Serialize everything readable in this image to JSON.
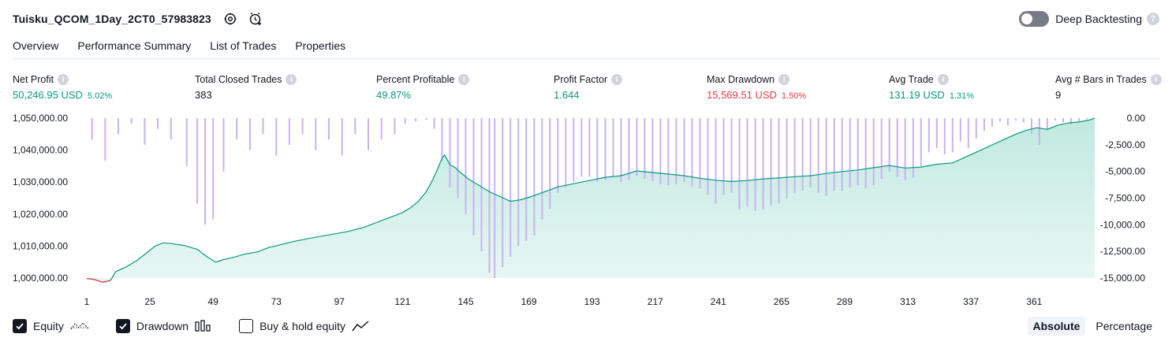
{
  "strategy_title": "Tuisku_QCOM_1Day_2CT0_57983823",
  "icons": {
    "settings": "settings-gear-icon",
    "alert": "add-alert-icon"
  },
  "deep_backtesting": {
    "label": "Deep Backtesting",
    "enabled": false,
    "help": "?"
  },
  "tabs": [
    {
      "label": "Overview",
      "active": true
    },
    {
      "label": "Performance Summary",
      "active": false
    },
    {
      "label": "List of Trades",
      "active": false
    },
    {
      "label": "Properties",
      "active": false
    }
  ],
  "metrics": [
    {
      "label": "Net Profit",
      "value": "50,246.95 USD",
      "pct": "5.02%",
      "color": "#089981"
    },
    {
      "label": "Total Closed Trades",
      "value": "383",
      "pct": "",
      "color": "#131722"
    },
    {
      "label": "Percent Profitable",
      "value": "49.87%",
      "pct": "",
      "color": "#089981"
    },
    {
      "label": "Profit Factor",
      "value": "1.644",
      "pct": "",
      "color": "#089981"
    },
    {
      "label": "Max Drawdown",
      "value": "15,569.51 USD",
      "pct": "1.50%",
      "color": "#f23645"
    },
    {
      "label": "Avg Trade",
      "value": "131.19 USD",
      "pct": "1.31%",
      "color": "#089981"
    },
    {
      "label": "Avg # Bars in Trades",
      "value": "9",
      "pct": "",
      "color": "#131722"
    }
  ],
  "info_glyph": "i",
  "legend": [
    {
      "label": "Equity",
      "checked": true,
      "icon": "equity-line-icon"
    },
    {
      "label": "Drawdown",
      "checked": true,
      "icon": "drawdown-bars-icon"
    },
    {
      "label": "Buy & hold equity",
      "checked": false,
      "icon": "buy-hold-line-icon"
    }
  ],
  "modes": [
    {
      "label": "Absolute",
      "active": true
    },
    {
      "label": "Percentage",
      "active": false
    }
  ],
  "colors": {
    "equity_line": "#089981",
    "equity_fill": "#bde8de",
    "drawdown_bar": "#c9b2f0",
    "loss_line": "#f23645",
    "text": "#131722"
  },
  "chart_data": {
    "type": "area",
    "x_label_ticks": [
      "1",
      "25",
      "49",
      "73",
      "97",
      "121",
      "145",
      "169",
      "193",
      "217",
      "241",
      "265",
      "289",
      "313",
      "337",
      "361"
    ],
    "x_range": [
      1,
      384
    ],
    "equity_axis": {
      "ticks": [
        "1,050,000.00",
        "1,040,000.00",
        "1,030,000.00",
        "1,020,000.00",
        "1,010,000.00",
        "1,000,000.00"
      ],
      "ylim": [
        1000000,
        1050000
      ]
    },
    "drawdown_axis": {
      "ticks": [
        "0.00",
        "-2,500.00",
        "-5,000.00",
        "-7,500.00",
        "-10,000.00",
        "-12,500.00",
        "-15,000.00"
      ],
      "ylim": [
        -15000,
        0
      ]
    },
    "series": [
      {
        "name": "Equity",
        "points": [
          [
            1,
            999900
          ],
          [
            4,
            999500
          ],
          [
            7,
            998700
          ],
          [
            10,
            999200
          ],
          [
            12,
            1002000
          ],
          [
            16,
            1003500
          ],
          [
            20,
            1005500
          ],
          [
            24,
            1008000
          ],
          [
            27,
            1010000
          ],
          [
            30,
            1011000
          ],
          [
            33,
            1010800
          ],
          [
            38,
            1010200
          ],
          [
            43,
            1009000
          ],
          [
            47,
            1006500
          ],
          [
            50,
            1005000
          ],
          [
            53,
            1005800
          ],
          [
            57,
            1006500
          ],
          [
            61,
            1007500
          ],
          [
            66,
            1008200
          ],
          [
            70,
            1009500
          ],
          [
            75,
            1010500
          ],
          [
            80,
            1011500
          ],
          [
            86,
            1012500
          ],
          [
            93,
            1013500
          ],
          [
            100,
            1014500
          ],
          [
            106,
            1015800
          ],
          [
            110,
            1017000
          ],
          [
            114,
            1018300
          ],
          [
            118,
            1019500
          ],
          [
            121,
            1020500
          ],
          [
            124,
            1022000
          ],
          [
            127,
            1024000
          ],
          [
            130,
            1027000
          ],
          [
            132,
            1030000
          ],
          [
            134,
            1033500
          ],
          [
            136,
            1037500
          ],
          [
            137,
            1038500
          ],
          [
            139,
            1035500
          ],
          [
            141,
            1034500
          ],
          [
            143,
            1033000
          ],
          [
            146,
            1031000
          ],
          [
            150,
            1029000
          ],
          [
            154,
            1027000
          ],
          [
            158,
            1025500
          ],
          [
            162,
            1024000
          ],
          [
            166,
            1024500
          ],
          [
            170,
            1025500
          ],
          [
            175,
            1027000
          ],
          [
            180,
            1028500
          ],
          [
            186,
            1029500
          ],
          [
            192,
            1030500
          ],
          [
            198,
            1031500
          ],
          [
            204,
            1032000
          ],
          [
            210,
            1033500
          ],
          [
            216,
            1033000
          ],
          [
            222,
            1032500
          ],
          [
            228,
            1032000
          ],
          [
            234,
            1031200
          ],
          [
            240,
            1030600
          ],
          [
            246,
            1030200
          ],
          [
            252,
            1030500
          ],
          [
            258,
            1031000
          ],
          [
            264,
            1031300
          ],
          [
            270,
            1031700
          ],
          [
            276,
            1032000
          ],
          [
            282,
            1032700
          ],
          [
            288,
            1033300
          ],
          [
            294,
            1033800
          ],
          [
            300,
            1034500
          ],
          [
            306,
            1035200
          ],
          [
            312,
            1034400
          ],
          [
            318,
            1034700
          ],
          [
            324,
            1035600
          ],
          [
            330,
            1036000
          ],
          [
            334,
            1037500
          ],
          [
            338,
            1039000
          ],
          [
            342,
            1040500
          ],
          [
            346,
            1042000
          ],
          [
            350,
            1043500
          ],
          [
            354,
            1045000
          ],
          [
            358,
            1046200
          ],
          [
            362,
            1047000
          ],
          [
            366,
            1046500
          ],
          [
            370,
            1047800
          ],
          [
            374,
            1048500
          ],
          [
            378,
            1048800
          ],
          [
            382,
            1049400
          ],
          [
            384,
            1050000
          ]
        ],
        "loss_until_x": 10
      },
      {
        "name": "Drawdown",
        "bars": [
          [
            3,
            -2000
          ],
          [
            8,
            -4000
          ],
          [
            13,
            -1500
          ],
          [
            18,
            -500
          ],
          [
            23,
            -2500
          ],
          [
            28,
            -1000
          ],
          [
            33,
            -2000
          ],
          [
            39,
            -4500
          ],
          [
            43,
            -8000
          ],
          [
            46,
            -10000
          ],
          [
            49,
            -9500
          ],
          [
            53,
            -5000
          ],
          [
            58,
            -2000
          ],
          [
            63,
            -3000
          ],
          [
            68,
            -1500
          ],
          [
            73,
            -3500
          ],
          [
            78,
            -2500
          ],
          [
            83,
            -1500
          ],
          [
            88,
            -3000
          ],
          [
            93,
            -2000
          ],
          [
            98,
            -3500
          ],
          [
            103,
            -1500
          ],
          [
            108,
            -3000
          ],
          [
            113,
            -2000
          ],
          [
            118,
            -1500
          ],
          [
            122,
            -500
          ],
          [
            126,
            -300
          ],
          [
            130,
            -150
          ],
          [
            133,
            -1000
          ],
          [
            136,
            -4000
          ],
          [
            139,
            -6500
          ],
          [
            142,
            -7500
          ],
          [
            145,
            -9000
          ],
          [
            148,
            -11000
          ],
          [
            151,
            -12500
          ],
          [
            154,
            -14500
          ],
          [
            156,
            -15000
          ],
          [
            159,
            -14000
          ],
          [
            162,
            -13000
          ],
          [
            165,
            -12000
          ],
          [
            168,
            -11500
          ],
          [
            171,
            -11000
          ],
          [
            174,
            -9500
          ],
          [
            177,
            -8500
          ],
          [
            180,
            -7000
          ],
          [
            183,
            -6500
          ],
          [
            186,
            -6000
          ],
          [
            189,
            -5500
          ],
          [
            192,
            -5500
          ],
          [
            195,
            -6000
          ],
          [
            198,
            -5800
          ],
          [
            201,
            -5500
          ],
          [
            204,
            -6000
          ],
          [
            207,
            -5800
          ],
          [
            210,
            -5400
          ],
          [
            213,
            -5700
          ],
          [
            216,
            -5900
          ],
          [
            219,
            -6200
          ],
          [
            222,
            -6300
          ],
          [
            225,
            -6200
          ],
          [
            228,
            -6000
          ],
          [
            231,
            -6400
          ],
          [
            234,
            -6600
          ],
          [
            237,
            -7200
          ],
          [
            240,
            -8000
          ],
          [
            243,
            -7200
          ],
          [
            246,
            -7000
          ],
          [
            249,
            -8600
          ],
          [
            252,
            -8300
          ],
          [
            255,
            -8700
          ],
          [
            258,
            -8600
          ],
          [
            261,
            -8200
          ],
          [
            264,
            -8000
          ],
          [
            267,
            -7500
          ],
          [
            270,
            -7000
          ],
          [
            273,
            -6800
          ],
          [
            276,
            -6500
          ],
          [
            279,
            -7000
          ],
          [
            282,
            -7300
          ],
          [
            285,
            -6800
          ],
          [
            288,
            -6800
          ],
          [
            291,
            -6500
          ],
          [
            294,
            -6300
          ],
          [
            297,
            -6600
          ],
          [
            300,
            -6300
          ],
          [
            303,
            -5700
          ],
          [
            306,
            -5000
          ],
          [
            309,
            -5500
          ],
          [
            312,
            -5800
          ],
          [
            315,
            -5600
          ],
          [
            318,
            -4500
          ],
          [
            321,
            -3200
          ],
          [
            324,
            -2800
          ],
          [
            327,
            -3400
          ],
          [
            330,
            -3200
          ],
          [
            333,
            -2200
          ],
          [
            336,
            -2800
          ],
          [
            339,
            -1900
          ],
          [
            342,
            -1200
          ],
          [
            345,
            -800
          ],
          [
            348,
            -300
          ],
          [
            351,
            -700
          ],
          [
            354,
            -200
          ],
          [
            357,
            -400
          ],
          [
            360,
            -1500
          ],
          [
            363,
            -2500
          ],
          [
            366,
            -1000
          ],
          [
            369,
            -200
          ],
          [
            372,
            -400
          ],
          [
            375,
            -600
          ],
          [
            378,
            -300
          ],
          [
            381,
            -100
          ]
        ]
      }
    ],
    "grid": false
  }
}
